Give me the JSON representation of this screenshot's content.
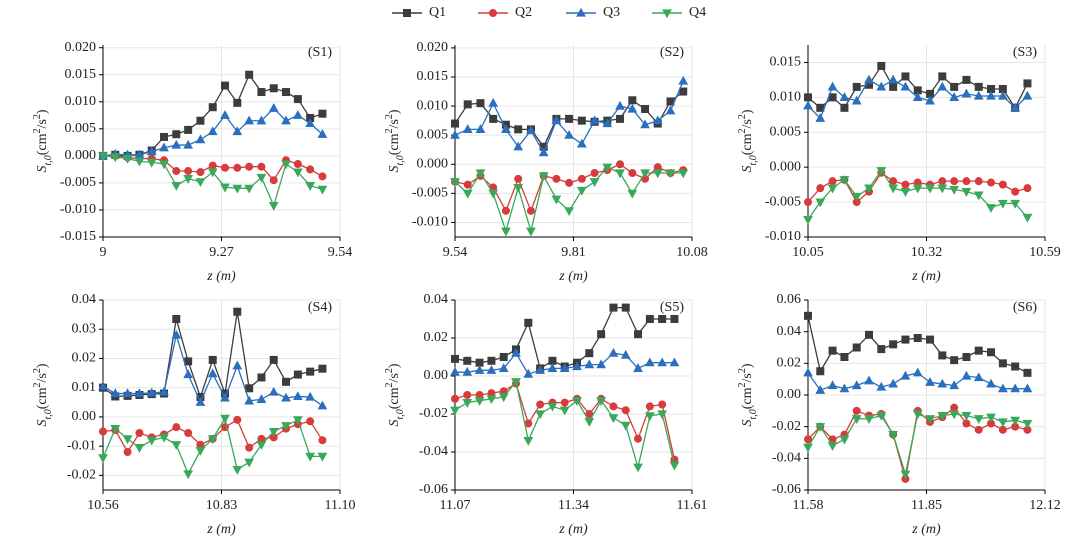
{
  "legend": [
    {
      "name": "Q1",
      "color": "#3c3c3c",
      "marker": "square"
    },
    {
      "name": "Q2",
      "color": "#d83b3b",
      "marker": "circle"
    },
    {
      "name": "Q3",
      "color": "#2b6fbf",
      "marker": "triangle-up"
    },
    {
      "name": "Q4",
      "color": "#3aa85a",
      "marker": "triangle-down"
    }
  ],
  "chart_data": [
    {
      "type": "line",
      "label": "(S1)",
      "xlabel": "z (m)",
      "ylabel": [
        "S",
        "t,0",
        "(cm",
        "2",
        "/s",
        "2",
        ")"
      ],
      "grid": true,
      "x": [
        9.0,
        9.028,
        9.056,
        9.083,
        9.111,
        9.139,
        9.167,
        9.194,
        9.222,
        9.25,
        9.278,
        9.306,
        9.333,
        9.361,
        9.389,
        9.417,
        9.444,
        9.472,
        9.5
      ],
      "xlim": [
        9,
        9.54
      ],
      "xticks": [
        9,
        9.27,
        9.54
      ],
      "ylim": [
        -0.015,
        0.0205
      ],
      "yticks": [
        -0.015,
        {
          "value": -0.01,
          "label": "-0.010"
        },
        -0.005,
        {
          "value": 0,
          "label": "0.000"
        },
        0.005,
        {
          "value": 0.01,
          "label": "0.010"
        },
        0.015,
        {
          "value": 0.02,
          "label": "0.020"
        }
      ],
      "series": [
        {
          "values": [
            0,
            0.0002,
            0,
            0.0002,
            0.001,
            0.0035,
            0.004,
            0.0048,
            0.0065,
            0.009,
            0.013,
            0.0098,
            0.015,
            0.0118,
            0.0125,
            0.0118,
            0.0105,
            0.007,
            0.0078
          ]
        },
        {
          "values": [
            0,
            0,
            -0.0003,
            -0.0005,
            -0.0005,
            -0.0008,
            -0.0028,
            -0.0028,
            -0.003,
            -0.0018,
            -0.0022,
            -0.0022,
            -0.002,
            -0.002,
            -0.0045,
            -0.0008,
            -0.0015,
            -0.0025,
            -0.0038
          ]
        },
        {
          "values": [
            0,
            0.0003,
            0.0002,
            0.0002,
            0.0008,
            0.0015,
            0.002,
            0.002,
            0.003,
            0.0045,
            0.0075,
            0.0045,
            0.0065,
            0.0065,
            0.0088,
            0.0065,
            0.0075,
            0.006,
            0.004
          ]
        },
        {
          "values": [
            0,
            -0.0002,
            -0.0005,
            -0.001,
            -0.0012,
            -0.0015,
            -0.0055,
            -0.0042,
            -0.0048,
            -0.003,
            -0.0058,
            -0.006,
            -0.006,
            -0.004,
            -0.0092,
            -0.0015,
            -0.003,
            -0.0055,
            -0.0062
          ]
        }
      ]
    },
    {
      "type": "line",
      "label": "(S2)",
      "xlabel": "z (m)",
      "ylabel": [
        "S",
        "t,0",
        "(cm",
        "2",
        "/s",
        "2",
        ")"
      ],
      "grid": true,
      "x": [
        9.54,
        9.569,
        9.598,
        9.627,
        9.656,
        9.684,
        9.713,
        9.742,
        9.771,
        9.8,
        9.829,
        9.858,
        9.887,
        9.916,
        9.944,
        9.973,
        10.002,
        10.031,
        10.06
      ],
      "xlim": [
        9.54,
        10.08
      ],
      "xticks": [
        9.54,
        9.81,
        10.08
      ],
      "ylim": [
        -0.0125,
        0.0205
      ],
      "yticks": [
        {
          "value": -0.01,
          "label": "-0.010"
        },
        -0.005,
        {
          "value": 0,
          "label": "0.000"
        },
        0.005,
        {
          "value": 0.01,
          "label": "0.010"
        },
        0.015,
        {
          "value": 0.02,
          "label": "0.020"
        }
      ],
      "series": [
        {
          "values": [
            0.007,
            0.0103,
            0.0105,
            0.0078,
            0.0068,
            0.006,
            0.006,
            0.003,
            0.0078,
            0.0078,
            0.0075,
            0.0073,
            0.0075,
            0.0078,
            0.011,
            0.0095,
            0.007,
            0.0108,
            0.0125
          ]
        },
        {
          "values": [
            -0.003,
            -0.0035,
            -0.002,
            -0.004,
            -0.008,
            -0.0025,
            -0.008,
            -0.002,
            -0.0025,
            -0.0032,
            -0.0025,
            -0.0015,
            -0.001,
            0,
            -0.0015,
            -0.0025,
            -0.0005,
            -0.0015,
            -0.001
          ]
        },
        {
          "values": [
            0.005,
            0.006,
            0.006,
            0.0105,
            0.006,
            0.003,
            0.0058,
            0.002,
            0.0075,
            0.005,
            0.0035,
            0.0075,
            0.007,
            0.01,
            0.0095,
            0.0068,
            0.0075,
            0.0092,
            0.0143
          ]
        },
        {
          "values": [
            -0.003,
            -0.005,
            -0.0015,
            -0.005,
            -0.0115,
            -0.004,
            -0.0115,
            -0.002,
            -0.006,
            -0.008,
            -0.0045,
            -0.003,
            -0.0005,
            -0.0015,
            -0.005,
            -0.0015,
            -0.0015,
            -0.0015,
            -0.0015
          ]
        }
      ]
    },
    {
      "type": "line",
      "label": "(S3)",
      "xlabel": "z (m)",
      "ylabel": [
        "S",
        "t,0",
        "(cm",
        "2",
        "/s",
        "2",
        ")"
      ],
      "grid": true,
      "x": [
        10.05,
        10.078,
        10.106,
        10.133,
        10.161,
        10.189,
        10.217,
        10.244,
        10.272,
        10.3,
        10.328,
        10.356,
        10.383,
        10.411,
        10.439,
        10.467,
        10.494,
        10.522,
        10.55
      ],
      "xlim": [
        10.05,
        10.59
      ],
      "xticks": [
        10.05,
        10.32,
        10.59
      ],
      "ylim": [
        -0.01,
        0.0175
      ],
      "yticks": [
        {
          "value": -0.01,
          "label": "-0.010"
        },
        -0.005,
        {
          "value": 0,
          "label": "0.000"
        },
        0.005,
        {
          "value": 0.01,
          "label": "0.010"
        },
        0.015
      ],
      "series": [
        {
          "values": [
            0.01,
            0.0085,
            0.01,
            0.0085,
            0.0115,
            0.0118,
            0.0145,
            0.0115,
            0.013,
            0.011,
            0.0105,
            0.013,
            0.0115,
            0.0125,
            0.0115,
            0.0112,
            0.0112,
            0.0085,
            0.012
          ]
        },
        {
          "values": [
            -0.005,
            -0.003,
            -0.002,
            -0.0018,
            -0.005,
            -0.0035,
            -0.0008,
            -0.002,
            -0.0025,
            -0.0022,
            -0.0025,
            -0.002,
            -0.002,
            -0.002,
            -0.002,
            -0.0022,
            -0.0025,
            -0.0035,
            -0.003
          ]
        },
        {
          "values": [
            0.0088,
            0.007,
            0.0115,
            0.01,
            0.0095,
            0.0125,
            0.0115,
            0.0125,
            0.0115,
            0.01,
            0.0095,
            0.0115,
            0.01,
            0.0105,
            0.0102,
            0.0102,
            0.0102,
            0.0085,
            0.0102
          ]
        },
        {
          "values": [
            -0.0075,
            -0.005,
            -0.003,
            -0.0018,
            -0.0042,
            -0.003,
            -0.0005,
            -0.003,
            -0.0035,
            -0.003,
            -0.003,
            -0.003,
            -0.0032,
            -0.0035,
            -0.004,
            -0.0058,
            -0.0052,
            -0.0052,
            -0.0072
          ]
        }
      ]
    },
    {
      "type": "line",
      "label": "(S4)",
      "xlabel": "z (m)",
      "ylabel": [
        "S",
        "t,0",
        "(cm",
        "2",
        "/s",
        "2",
        ")"
      ],
      "grid": true,
      "x": [
        10.56,
        10.588,
        10.616,
        10.643,
        10.671,
        10.699,
        10.727,
        10.754,
        10.782,
        10.81,
        10.838,
        10.866,
        10.893,
        10.921,
        10.949,
        10.977,
        11.004,
        11.032,
        11.06
      ],
      "xlim": [
        10.56,
        11.1
      ],
      "xticks": [
        10.56,
        10.83,
        {
          "value": 11.1,
          "label": "11.10"
        }
      ],
      "ylim": [
        -0.025,
        0.04
      ],
      "yticks": [
        -0.02,
        -0.01,
        {
          "value": 0,
          "label": "0.00"
        },
        0.01,
        0.02,
        0.03,
        0.04
      ],
      "series": [
        {
          "values": [
            0.01,
            0.007,
            0.0072,
            0.0075,
            0.0078,
            0.008,
            0.0335,
            0.019,
            0.0068,
            0.0195,
            0.008,
            0.036,
            0.0098,
            0.0135,
            0.0195,
            0.012,
            0.0145,
            0.0155,
            0.0165
          ]
        },
        {
          "values": [
            -0.005,
            -0.0045,
            -0.012,
            -0.0055,
            -0.007,
            -0.006,
            -0.0035,
            -0.0055,
            -0.0095,
            -0.0075,
            -0.0035,
            -0.001,
            -0.0105,
            -0.0075,
            -0.007,
            -0.004,
            -0.0025,
            -0.0015,
            -0.008
          ]
        },
        {
          "values": [
            0.0105,
            0.008,
            0.008,
            0.008,
            0.0082,
            0.0085,
            0.028,
            0.0145,
            0.005,
            0.0148,
            0.0065,
            0.0175,
            0.0055,
            0.006,
            0.0085,
            0.0065,
            0.007,
            0.0068,
            0.0038
          ]
        },
        {
          "values": [
            -0.014,
            -0.004,
            -0.0075,
            -0.0105,
            -0.008,
            -0.007,
            -0.0095,
            -0.0195,
            -0.0115,
            -0.0075,
            -0.0005,
            -0.018,
            -0.0155,
            -0.0095,
            -0.005,
            -0.003,
            -0.001,
            -0.0135,
            -0.0135
          ]
        }
      ]
    },
    {
      "type": "line",
      "label": "(S5)",
      "xlabel": "z (m)",
      "ylabel": [
        "S",
        "t,0",
        "(cm",
        "2",
        "/s",
        "2",
        ")"
      ],
      "grid": true,
      "x": [
        11.07,
        11.098,
        11.126,
        11.153,
        11.181,
        11.209,
        11.237,
        11.264,
        11.292,
        11.32,
        11.348,
        11.376,
        11.403,
        11.431,
        11.459,
        11.487,
        11.514,
        11.542,
        11.57
      ],
      "xlim": [
        11.07,
        11.61
      ],
      "xticks": [
        11.07,
        11.34,
        11.61
      ],
      "ylim": [
        -0.06,
        0.04
      ],
      "yticks": [
        -0.06,
        -0.04,
        -0.02,
        {
          "value": 0,
          "label": "0.00"
        },
        0.02,
        0.04
      ],
      "series": [
        {
          "values": [
            0.009,
            0.008,
            0.007,
            0.008,
            0.01,
            0.014,
            0.028,
            0.004,
            0.008,
            0.005,
            0.007,
            0.012,
            0.022,
            0.036,
            0.036,
            0.022,
            0.03,
            0.03,
            0.03
          ]
        },
        {
          "values": [
            -0.012,
            -0.01,
            -0.01,
            -0.009,
            -0.008,
            -0.004,
            -0.025,
            -0.015,
            -0.014,
            -0.014,
            -0.012,
            -0.02,
            -0.012,
            -0.016,
            -0.018,
            -0.033,
            -0.016,
            -0.015,
            -0.044
          ]
        },
        {
          "values": [
            0.002,
            0.002,
            0.003,
            0.003,
            0.004,
            0.012,
            0.001,
            0.003,
            0.004,
            0.004,
            0.005,
            0.006,
            0.006,
            0.012,
            0.011,
            0.004,
            0.007,
            0.007,
            0.007
          ]
        },
        {
          "values": [
            -0.018,
            -0.014,
            -0.013,
            -0.012,
            -0.011,
            -0.003,
            -0.034,
            -0.02,
            -0.016,
            -0.018,
            -0.013,
            -0.024,
            -0.013,
            -0.022,
            -0.026,
            -0.048,
            -0.021,
            -0.02,
            -0.047
          ]
        }
      ]
    },
    {
      "type": "line",
      "label": "(S6)",
      "xlabel": "z (m)",
      "ylabel": [
        "S",
        "t,0",
        "(cm",
        "2",
        "/s",
        "2",
        ")"
      ],
      "grid": true,
      "x": [
        11.58,
        11.608,
        11.636,
        11.663,
        11.691,
        11.719,
        11.747,
        11.774,
        11.802,
        11.83,
        11.858,
        11.886,
        11.913,
        11.941,
        11.969,
        11.997,
        12.024,
        12.052,
        12.08
      ],
      "xlim": [
        11.58,
        12.12
      ],
      "xticks": [
        11.58,
        11.85,
        12.12
      ],
      "ylim": [
        -0.06,
        0.06
      ],
      "yticks": [
        -0.06,
        -0.04,
        -0.02,
        {
          "value": 0,
          "label": "0.00"
        },
        0.02,
        0.04,
        0.06
      ],
      "series": [
        {
          "values": [
            0.05,
            0.015,
            0.028,
            0.024,
            0.03,
            0.038,
            0.029,
            0.032,
            0.035,
            0.036,
            0.035,
            0.025,
            0.022,
            0.024,
            0.028,
            0.027,
            0.02,
            0.018,
            0.014
          ]
        },
        {
          "values": [
            -0.028,
            -0.02,
            -0.028,
            -0.025,
            -0.01,
            -0.013,
            -0.012,
            -0.025,
            -0.053,
            -0.01,
            -0.017,
            -0.014,
            -0.008,
            -0.018,
            -0.022,
            -0.018,
            -0.022,
            -0.02,
            -0.022
          ]
        },
        {
          "values": [
            0.014,
            0.003,
            0.006,
            0.004,
            0.006,
            0.009,
            0.005,
            0.007,
            0.012,
            0.014,
            0.008,
            0.007,
            0.006,
            0.012,
            0.011,
            0.007,
            0.004,
            0.004,
            0.004
          ]
        },
        {
          "values": [
            -0.033,
            -0.02,
            -0.032,
            -0.028,
            -0.015,
            -0.015,
            -0.013,
            -0.025,
            -0.05,
            -0.012,
            -0.015,
            -0.013,
            -0.012,
            -0.013,
            -0.015,
            -0.014,
            -0.017,
            -0.016,
            -0.018
          ]
        }
      ]
    }
  ]
}
